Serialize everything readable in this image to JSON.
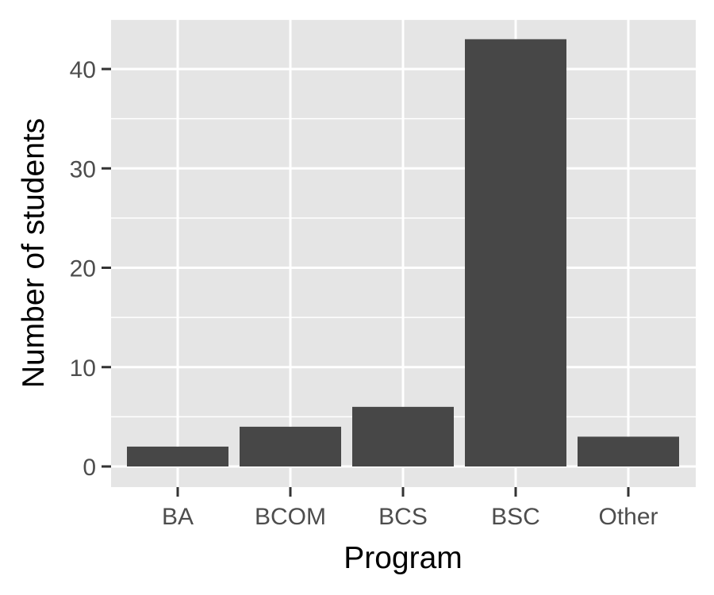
{
  "chart_data": {
    "type": "bar",
    "title": "",
    "xlabel": "Program",
    "ylabel": "Number of students",
    "categories": [
      "BA",
      "BCOM",
      "BCS",
      "BSC",
      "Other"
    ],
    "values": [
      2,
      4,
      6,
      43,
      3
    ],
    "ylim": [
      0,
      45
    ],
    "yticks": [
      0,
      10,
      20,
      30,
      40
    ],
    "grid": true,
    "legend": "none",
    "colors": {
      "bar": "#474747",
      "panel": "#e5e5e5",
      "grid": "#ffffff"
    }
  }
}
